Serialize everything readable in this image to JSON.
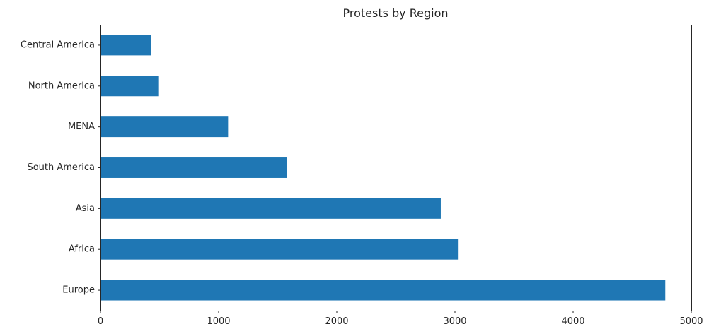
{
  "chart_data": {
    "type": "bar",
    "orientation": "horizontal",
    "title": "Protests by Region",
    "xlabel": "",
    "ylabel": "",
    "categories": [
      "Central America",
      "North America",
      "MENA",
      "South America",
      "Asia",
      "Africa",
      "Europe"
    ],
    "values": [
      430,
      495,
      1080,
      1575,
      2880,
      3025,
      4780
    ],
    "xlim": [
      0,
      5000
    ],
    "xticks": [
      0,
      1000,
      2000,
      3000,
      4000,
      5000
    ],
    "grid": false,
    "legend": "none",
    "colors": {
      "bar": "#1f77b4",
      "axis": "#262626"
    }
  }
}
